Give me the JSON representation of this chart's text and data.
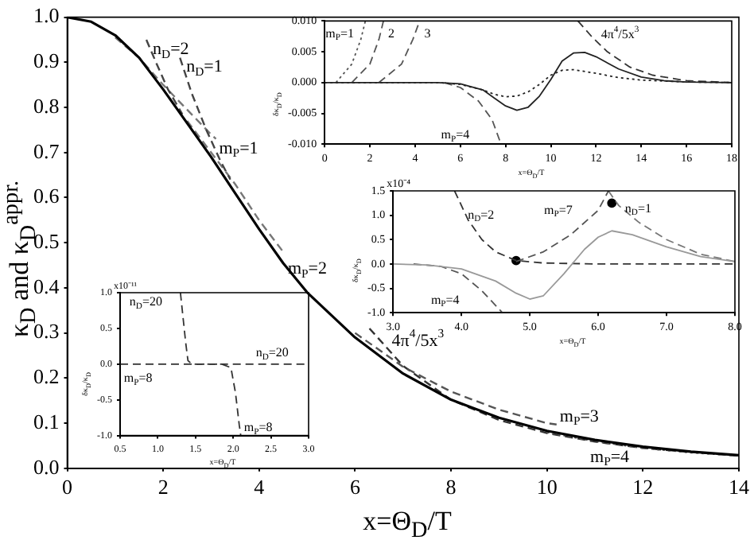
{
  "chart_data": [
    {
      "type": "line",
      "xlabel": "x=Θ$_{D}$/T",
      "ylabel": "κ$_{D}$ and κ$_{D}$$^{appr.}$",
      "xlim": [
        0,
        14
      ],
      "ylim": [
        0,
        1.0
      ],
      "xticks": [
        0,
        2,
        4,
        6,
        8,
        10,
        12,
        14
      ],
      "yticks": [
        {
          "value": 0,
          "label": "0.0"
        },
        {
          "value": 0.1,
          "label": "0.1"
        },
        {
          "value": 0.2,
          "label": "0.2"
        },
        {
          "value": 0.3,
          "label": "0.3"
        },
        {
          "value": 0.4,
          "label": "0.4"
        },
        {
          "value": 0.5,
          "label": "0.5"
        },
        {
          "value": 0.6,
          "label": "0.6"
        },
        {
          "value": 0.7,
          "label": "0.7"
        },
        {
          "value": 0.8,
          "label": "0.8"
        },
        {
          "value": 0.9,
          "label": "0.9"
        },
        {
          "value": 1,
          "label": "1.0"
        }
      ],
      "marker": "none",
      "series": [
        {
          "color": "#000000",
          "line_style": "solid",
          "x": [
            0,
            0.5,
            1,
            1.5,
            2,
            2.5,
            3,
            3.5,
            4,
            4.5,
            5,
            6,
            7,
            8,
            9,
            10,
            11,
            12,
            13,
            14
          ],
          "values": [
            1.0,
            0.99,
            0.96,
            0.91,
            0.84,
            0.765,
            0.69,
            0.61,
            0.53,
            0.455,
            0.39,
            0.29,
            0.21,
            0.152,
            0.112,
            0.083,
            0.063,
            0.048,
            0.037,
            0.029
          ]
        },
        {
          "color": "#444444",
          "line_style": "dashed",
          "x": [
            1.65,
            1.85,
            2.1,
            2.4
          ],
          "values": [
            0.95,
            0.9,
            0.84,
            0.785
          ]
        },
        {
          "color": "#444444",
          "line_style": "dashed",
          "x": [
            2.35,
            2.6,
            2.9,
            3.2,
            3.4
          ],
          "values": [
            0.91,
            0.83,
            0.75,
            0.68,
            0.64
          ]
        },
        {
          "color": "#777777",
          "line_style": "dashed",
          "x": [
            1.0,
            1.5,
            2,
            2.5,
            3.0,
            3.1
          ],
          "values": [
            0.955,
            0.91,
            0.85,
            0.795,
            0.74,
            0.73
          ]
        },
        {
          "color": "#777777",
          "line_style": "dashed",
          "x": [
            2.5,
            3,
            3.5,
            4.0,
            4.5
          ],
          "values": [
            0.77,
            0.7,
            0.63,
            0.55,
            0.48
          ]
        },
        {
          "color": "#555555",
          "line_style": "dashed",
          "x": [
            6,
            7,
            8,
            9,
            10,
            10.2
          ],
          "values": [
            0.3,
            0.225,
            0.17,
            0.13,
            0.1,
            0.097
          ]
        },
        {
          "color": "#555555",
          "line_style": "dotted",
          "x": [
            10,
            11,
            12,
            13,
            14
          ],
          "values": [
            0.08,
            0.06,
            0.045,
            0.035,
            0.028
          ]
        },
        {
          "color": "#333333",
          "line_style": "dashed",
          "x": [
            6.3,
            7,
            8,
            9,
            10,
            11,
            12,
            13,
            14
          ],
          "values": [
            0.31,
            0.227,
            0.152,
            0.107,
            0.078,
            0.059,
            0.045,
            0.036,
            0.028
          ]
        }
      ],
      "annotations": [
        {
          "text": "n$_{D}$=2",
          "x": 1.65,
          "y": 0.95
        },
        {
          "text": "n$_{D}$=1",
          "x": 2.35,
          "y": 0.91
        },
        {
          "text": "m$_{P}$=1",
          "x": 3.1,
          "y": 0.73
        },
        {
          "text": "m$_{P}$=2",
          "x": 4.5,
          "y": 0.48
        },
        {
          "text": "4π$^{4}$/5x$^{3}$",
          "x": 6.3,
          "y": 0.31
        },
        {
          "text": "m$_{P}$=3",
          "x": 10.2,
          "y": 0.097
        },
        {
          "text": "m$_{P}$=4",
          "x": 11,
          "y": 0.06
        }
      ]
    },
    {
      "type": "line",
      "xlabel": "x=Θ$_{D}$/T",
      "ylabel": "δκ$_{D}$/κ$_{D}$",
      "xlim": [
        0,
        18
      ],
      "ylim": [
        -0.01,
        0.01
      ],
      "xticks": [
        0,
        2,
        4,
        6,
        8,
        10,
        12,
        14,
        16,
        18
      ],
      "yticks": [
        {
          "value": -0.01,
          "label": "-0.010"
        },
        {
          "value": -0.005,
          "label": "-0.005"
        },
        {
          "value": 0,
          "label": "0.000"
        },
        {
          "value": 0.005,
          "label": "0.005"
        },
        {
          "value": 0.01,
          "label": "0.010"
        }
      ],
      "marker": "none",
      "series": [
        {
          "color": "#222222",
          "line_style": "solid",
          "x": [
            0,
            5,
            6,
            7,
            7.5,
            8,
            8.5,
            9,
            9.5,
            10,
            10.5,
            11,
            11.5,
            12,
            13,
            14,
            15,
            16,
            18
          ],
          "values": [
            0,
            0,
            -0.0002,
            -0.0012,
            -0.0025,
            -0.0038,
            -0.0045,
            -0.004,
            -0.0022,
            0.0005,
            0.0035,
            0.0048,
            0.0049,
            0.0042,
            0.0022,
            0.0009,
            0.0003,
            0.0001,
            0
          ]
        },
        {
          "color": "#222222",
          "line_style": "dotted",
          "x": [
            0,
            5,
            6,
            7,
            7.5,
            8,
            8.5,
            9,
            9.5,
            10,
            10.5,
            11,
            12,
            13,
            14,
            16,
            18
          ],
          "values": [
            0,
            0,
            -0.0003,
            -0.0012,
            -0.0019,
            -0.0023,
            -0.0022,
            -0.0015,
            -0.0003,
            0.0012,
            0.002,
            0.0021,
            0.0015,
            0.0008,
            0.0004,
            0.0001,
            0
          ]
        },
        {
          "color": "#555555",
          "line_style": "dotted",
          "x": [
            0.5,
            1.2,
            1.6,
            1.8
          ],
          "values": [
            0,
            0.003,
            0.007,
            0.01
          ]
        },
        {
          "color": "#555555",
          "line_style": "dashed",
          "x": [
            1.2,
            2.0,
            2.4,
            2.6
          ],
          "values": [
            0,
            0.003,
            0.007,
            0.01
          ]
        },
        {
          "color": "#555555",
          "line_style": "dashed",
          "x": [
            2.4,
            3.4,
            3.9,
            4.2
          ],
          "values": [
            0,
            0.003,
            0.007,
            0.01
          ]
        },
        {
          "color": "#555555",
          "line_style": "dashed",
          "x": [
            5.3,
            6,
            6.8,
            7.4,
            7.8
          ],
          "values": [
            0,
            -0.0008,
            -0.003,
            -0.006,
            -0.01
          ]
        },
        {
          "color": "#333333",
          "line_style": "dashed",
          "x": [
            11.2,
            11.8,
            12.5,
            13.5,
            14.5,
            16,
            18
          ],
          "values": [
            0.01,
            0.0075,
            0.005,
            0.0025,
            0.0012,
            0.0003,
            0
          ]
        }
      ],
      "annotations": [
        {
          "text": "m$_{P}$=1",
          "x": 1.8,
          "y": 0.01
        },
        {
          "text": "2",
          "x": 2.6,
          "y": 0.01
        },
        {
          "text": "3",
          "x": 4.2,
          "y": 0.01
        },
        {
          "text": "m$_{P}$=4",
          "x": 7.4,
          "y": -0.006
        },
        {
          "text": "4π$^{4}$/5x$^{3}$",
          "x": 11.8,
          "y": 0.0075
        }
      ]
    },
    {
      "type": "line",
      "xlabel": "x=Θ$_{D}$/T",
      "ylabel": "δκ$_{D}$/κ$_{D}$",
      "xlim": [
        3,
        8
      ],
      "ylim": [
        -1,
        1.5
      ],
      "xticks": [
        {
          "value": 3,
          "label": "3.0"
        },
        {
          "value": 4,
          "label": "4.0"
        },
        {
          "value": 5,
          "label": "5.0"
        },
        {
          "value": 6,
          "label": "6.0"
        },
        {
          "value": 7,
          "label": "7.0"
        },
        {
          "value": 8,
          "label": "8.0"
        }
      ],
      "yticks": [
        {
          "value": -1,
          "label": "-1.0"
        },
        {
          "value": -0.5,
          "label": "-0.5"
        },
        {
          "value": 0,
          "label": "0.0"
        },
        {
          "value": 0.5,
          "label": "0.5"
        },
        {
          "value": 1,
          "label": "1.0"
        },
        {
          "value": 1.5,
          "label": "1.5"
        }
      ],
      "marker": "none",
      "series": [
        {
          "color": "#999999",
          "line_style": "solid",
          "x": [
            3,
            3.5,
            4,
            4.5,
            4.8,
            5.0,
            5.2,
            5.5,
            5.8,
            6.0,
            6.2,
            6.5,
            7,
            7.5,
            8
          ],
          "values": [
            0,
            -0.02,
            -0.1,
            -0.35,
            -0.6,
            -0.72,
            -0.65,
            -0.2,
            0.3,
            0.55,
            0.68,
            0.6,
            0.35,
            0.15,
            0.05
          ]
        },
        {
          "color": "#333333",
          "line_style": "dashed",
          "x": [
            3.9,
            4.1,
            4.3,
            4.5,
            4.8,
            5.2,
            6,
            7,
            8
          ],
          "values": [
            1.5,
            0.9,
            0.5,
            0.25,
            0.07,
            0.02,
            0,
            0,
            0
          ]
        },
        {
          "color": "#555555",
          "line_style": "dashed",
          "x": [
            4.8,
            5.2,
            5.6,
            6.0,
            6.15
          ],
          "values": [
            0.05,
            0.25,
            0.6,
            1.1,
            1.5
          ]
        },
        {
          "color": "#777777",
          "line_style": "dashed",
          "x": [
            6.15,
            6.3,
            6.6,
            7,
            7.5,
            8
          ],
          "values": [
            1.5,
            1.2,
            0.85,
            0.5,
            0.2,
            0.05
          ]
        },
        {
          "color": "#555555",
          "line_style": "dashed",
          "x": [
            3.3,
            3.7,
            4.0,
            4.3,
            4.6
          ],
          "values": [
            0,
            -0.05,
            -0.2,
            -0.55,
            -1.0
          ]
        },
        {
          "type": "scatter",
          "marker": "circle",
          "color": "#000000",
          "x": [
            4.8,
            6.2
          ],
          "values": [
            0.07,
            1.25
          ]
        }
      ],
      "annotations": [
        "x10⁻⁴",
        {
          "text": "n$_{D}$=2",
          "x": 4.0,
          "y": 1.2
        },
        {
          "text": "m$_{P}$=7",
          "x": 6.0,
          "y": 1.1
        },
        {
          "text": "n$_{D}$=1",
          "x": 6.3,
          "y": 1.2
        },
        {
          "text": "m$_{P}$=4",
          "x": 4.3,
          "y": -0.55
        }
      ]
    },
    {
      "type": "line",
      "xlabel": "x=Θ$_{D}$/T",
      "ylabel": "δκ$_{D}$/κ$_{D}$",
      "xlim": [
        0.5,
        3
      ],
      "ylim": [
        -1,
        1
      ],
      "xticks": [
        {
          "value": 0.5,
          "label": "0.5"
        },
        {
          "value": 1,
          "label": "1.0"
        },
        {
          "value": 1.5,
          "label": "1.5"
        },
        {
          "value": 2,
          "label": "2.0"
        },
        {
          "value": 2.5,
          "label": "2.5"
        },
        {
          "value": 3,
          "label": "3.0"
        }
      ],
      "yticks": [
        {
          "value": -1,
          "label": "-1.0"
        },
        {
          "value": -0.5,
          "label": "-0.5"
        },
        {
          "value": 0,
          "label": "0.0"
        },
        {
          "value": 0.5,
          "label": "0.5"
        },
        {
          "value": 1,
          "label": "1.0"
        }
      ],
      "marker": "none",
      "series": [
        {
          "color": "#333333",
          "line_style": "dashed",
          "x": [
            1.3,
            1.33,
            1.37,
            1.4,
            1.45,
            2.0,
            2.6,
            3.0
          ],
          "values": [
            1.0,
            0.7,
            0.3,
            0.05,
            0,
            0,
            0,
            0
          ]
        },
        {
          "color": "#333333",
          "line_style": "dashed",
          "x": [
            0.5,
            1.5,
            1.85,
            1.97,
            2.03,
            2.08,
            2.1
          ],
          "values": [
            0,
            0,
            0,
            -0.05,
            -0.4,
            -0.85,
            -1.0
          ]
        }
      ],
      "annotations": [
        "x10⁻¹¹",
        {
          "text": "n$_{D}$=20",
          "x": 1.3,
          "y": 1.0
        },
        {
          "text": "n$_{D}$=20",
          "x": 2.3,
          "y": 0
        },
        {
          "text": "m$_{P}$=8",
          "x": 0.55,
          "y": 0
        },
        {
          "text": "m$_{P}$=8",
          "x": 2.08,
          "y": -0.85
        }
      ]
    }
  ]
}
